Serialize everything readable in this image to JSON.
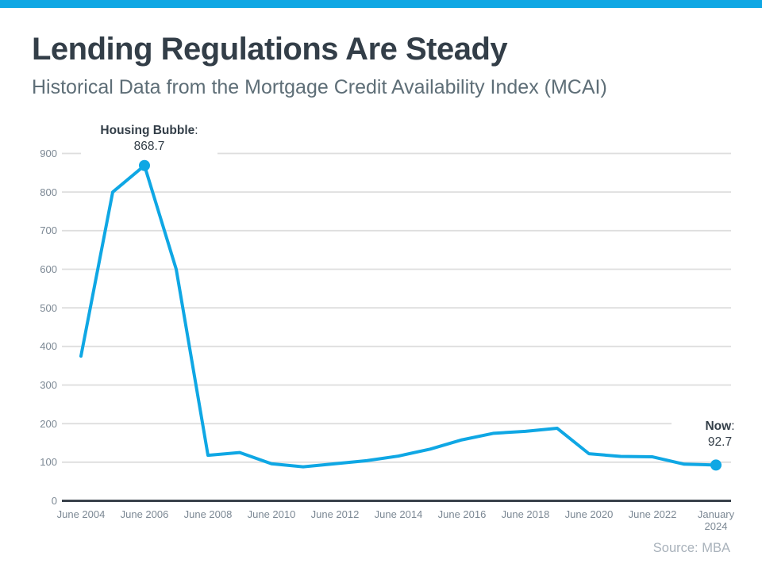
{
  "page": {
    "accent_color": "#0FA7E4",
    "background": "#ffffff"
  },
  "header": {
    "title": "Lending Regulations Are Steady",
    "subtitle": "Historical Data from the Mortgage Credit Availability Index (MCAI)"
  },
  "chart_data": {
    "type": "line",
    "title": "Mortgage Credit Availability Index (MCAI)",
    "xlabel": "",
    "ylabel": "",
    "ylim": [
      0,
      900
    ],
    "y_ticks": [
      0,
      100,
      200,
      300,
      400,
      500,
      600,
      700,
      800,
      900
    ],
    "grid": "horizontal",
    "legend": "none",
    "line_color": "#0FA7E4",
    "grid_color": "#DEDEDE",
    "axis_color": "#39424B",
    "tick_label_color": "#7C8894",
    "x_tick_labels": [
      "June 2004",
      "June 2006",
      "June 2008",
      "June 2010",
      "June 2012",
      "June 2014",
      "June 2016",
      "June 2018",
      "June 2020",
      "June 2022",
      "January\n2024"
    ],
    "series": [
      {
        "name": "MCAI",
        "points": [
          {
            "x": "June 2004",
            "y": 375
          },
          {
            "x": "June 2005",
            "y": 800
          },
          {
            "x": "June 2006",
            "y": 868.7
          },
          {
            "x": "June 2007",
            "y": 600
          },
          {
            "x": "June 2008",
            "y": 118
          },
          {
            "x": "June 2009",
            "y": 125
          },
          {
            "x": "June 2010",
            "y": 96
          },
          {
            "x": "June 2011",
            "y": 88
          },
          {
            "x": "June 2012",
            "y": 96
          },
          {
            "x": "June 2013",
            "y": 104
          },
          {
            "x": "June 2014",
            "y": 116
          },
          {
            "x": "June 2015",
            "y": 134
          },
          {
            "x": "June 2016",
            "y": 158
          },
          {
            "x": "June 2017",
            "y": 175
          },
          {
            "x": "June 2018",
            "y": 180
          },
          {
            "x": "June 2019",
            "y": 188
          },
          {
            "x": "June 2020",
            "y": 122
          },
          {
            "x": "June 2021",
            "y": 115
          },
          {
            "x": "June 2022",
            "y": 114
          },
          {
            "x": "June 2023",
            "y": 95
          },
          {
            "x": "January 2024",
            "y": 92.7
          }
        ]
      }
    ],
    "annotations": [
      {
        "label": "Housing Bubble",
        "colon": ":",
        "value": "868.7",
        "point_index": 2
      },
      {
        "label": "Now",
        "colon": ":",
        "value": "92.7",
        "point_index": 20
      }
    ]
  },
  "source": {
    "text": "Source: MBA"
  }
}
